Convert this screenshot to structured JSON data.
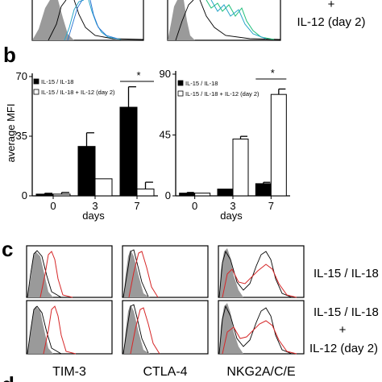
{
  "panels": {
    "a_conditions": [
      "+",
      "IL-12 (day 2)"
    ],
    "b": "b",
    "c": "c",
    "d": "d"
  },
  "chart_data": [
    {
      "type": "bar",
      "panel": "b-left",
      "categories": [
        "0",
        "3",
        "7"
      ],
      "xlabel": "days",
      "ylabel": "average MFI",
      "ylim": [
        0,
        70
      ],
      "yticks": [
        "0",
        "35",
        "70"
      ],
      "series": [
        {
          "name": "IL-15 / IL-18",
          "color": "#000000",
          "values": [
            1,
            29,
            52
          ],
          "errors": [
            0.5,
            8,
            12
          ]
        },
        {
          "name": "IL-15 / IL-18 + IL-12 (day 2)",
          "color": "#ffffff",
          "values": [
            1,
            10,
            4
          ],
          "errors": [
            1,
            0,
            4
          ]
        }
      ],
      "significance": {
        "between": [
          "7",
          "7"
        ],
        "label": "*"
      }
    },
    {
      "type": "bar",
      "panel": "b-right",
      "categories": [
        "0",
        "3",
        "7"
      ],
      "xlabel": "days",
      "ylabel": "",
      "ylim": [
        0,
        90
      ],
      "yticks": [
        "0",
        "45",
        "90"
      ],
      "series": [
        {
          "name": "IL-15 / IL-18",
          "color": "#000000",
          "values": [
            2,
            5,
            9
          ],
          "errors": [
            0.5,
            0,
            1
          ]
        },
        {
          "name": "IL-15 / IL-18 + IL-12 (day 2)",
          "color": "#ffffff",
          "values": [
            2,
            42,
            75
          ],
          "errors": [
            0,
            2,
            4
          ]
        }
      ],
      "significance": {
        "between": [
          "7",
          "7"
        ],
        "label": "*"
      }
    },
    {
      "type": "histogram-grid",
      "panel": "c",
      "columns": [
        "TIM-3",
        "CTLA-4",
        "NKG2A/C/E"
      ],
      "rows": [
        [
          "IL-15 / IL-18"
        ],
        [
          "IL-15 / IL-18",
          "+",
          "IL-12 (day 2)"
        ]
      ],
      "colors": {
        "isotype": "#999999",
        "baseline": "#000000",
        "stimulated": "#d62728"
      }
    }
  ]
}
